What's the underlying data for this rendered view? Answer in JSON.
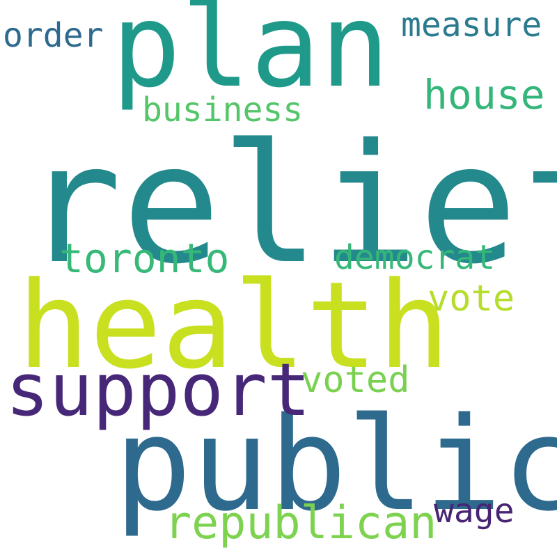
{
  "words": {
    "relief": {
      "text": "relief",
      "color": "#24898c"
    },
    "plan": {
      "text": "plan",
      "color": "#1f9a8a"
    },
    "health": {
      "text": "health",
      "color": "#c8e01f"
    },
    "public": {
      "text": "public",
      "color": "#2e6a8e"
    },
    "support": {
      "text": "support",
      "color": "#472777"
    },
    "republican": {
      "text": "republican",
      "color": "#7dd24f"
    },
    "toronto": {
      "text": "toronto",
      "color": "#36b877"
    },
    "house": {
      "text": "house",
      "color": "#34b579"
    },
    "business": {
      "text": "business",
      "color": "#54c568"
    },
    "measure": {
      "text": "measure",
      "color": "#2b7b8e"
    },
    "order": {
      "text": "order",
      "color": "#2e6a8e"
    },
    "democrat": {
      "text": "democrat",
      "color": "#35b779"
    },
    "vote": {
      "text": "vote",
      "color": "#b6dd2b"
    },
    "voted": {
      "text": "voted",
      "color": "#7ad151"
    },
    "wage": {
      "text": "wage",
      "color": "#482475"
    }
  }
}
